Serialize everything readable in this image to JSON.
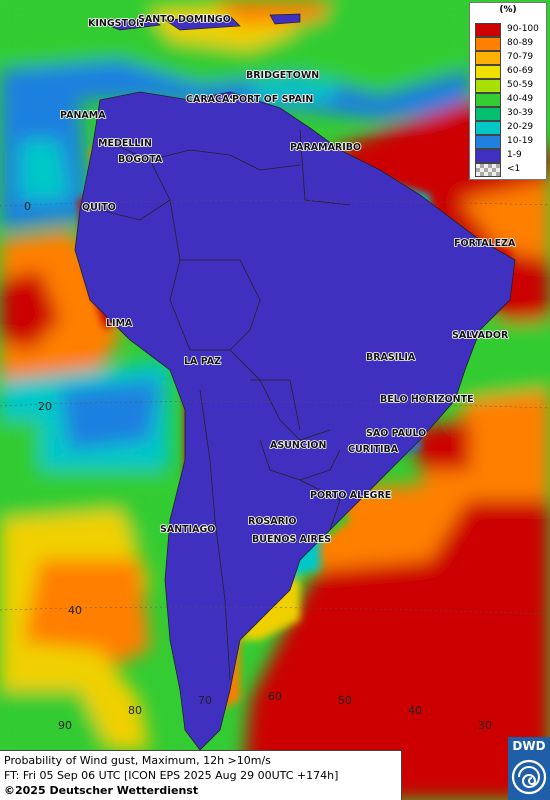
{
  "map": {
    "colors": {
      "ocean_high": "#cc0000",
      "ocean_orange": "#ff7f00",
      "ocean_yellow": "#f0d000",
      "ocean_green": "#33cc33",
      "ocean_cyan": "#00c8c8",
      "ocean_blue": "#1f80e0",
      "land_low": "#4030c0",
      "land_none": "#ece6d0",
      "water": "#3399ff"
    },
    "cities": [
      {
        "id": "kingston",
        "label": "KINGSTON"
      },
      {
        "id": "santo-domingo",
        "label": "SANTO DOMINGO"
      },
      {
        "id": "bridgetown",
        "label": "BRIDGETOWN"
      },
      {
        "id": "caracas",
        "label": "CARACAS"
      },
      {
        "id": "port-of-spain",
        "label": "PORT OF SPAIN"
      },
      {
        "id": "panama",
        "label": "PANAMA"
      },
      {
        "id": "medellin",
        "label": "MEDELLIN"
      },
      {
        "id": "bogota",
        "label": "BOGOTA"
      },
      {
        "id": "paramaribo",
        "label": "PARAMARIBO"
      },
      {
        "id": "quito",
        "label": "QUITO"
      },
      {
        "id": "fortaleza",
        "label": "FORTALEZA"
      },
      {
        "id": "lima",
        "label": "LIMA"
      },
      {
        "id": "salvador",
        "label": "SALVADOR"
      },
      {
        "id": "brasilia",
        "label": "BRASILIA"
      },
      {
        "id": "la-paz",
        "label": "LA PAZ"
      },
      {
        "id": "belo-horizonte",
        "label": "BELO HORIZONTE"
      },
      {
        "id": "sao-paulo",
        "label": "SAO PAULO"
      },
      {
        "id": "asuncion",
        "label": "ASUNCION"
      },
      {
        "id": "curitiba",
        "label": "CURITIBA"
      },
      {
        "id": "porto-alegre",
        "label": "PORTO ALEGRE"
      },
      {
        "id": "rosario",
        "label": "ROSARIO"
      },
      {
        "id": "santiago",
        "label": "SANTIAGO"
      },
      {
        "id": "buenos-aires",
        "label": "BUENOS AIRES"
      }
    ],
    "gridlabels": [
      {
        "id": "lat-0",
        "label": "0"
      },
      {
        "id": "lat-20",
        "label": "20"
      },
      {
        "id": "lat-40",
        "label": "40"
      },
      {
        "id": "lon-90",
        "label": "90"
      },
      {
        "id": "lon-80",
        "label": "80"
      },
      {
        "id": "lon-70",
        "label": "70"
      },
      {
        "id": "lon-60",
        "label": "60"
      },
      {
        "id": "lon-50",
        "label": "50"
      },
      {
        "id": "lon-40",
        "label": "40"
      },
      {
        "id": "lon-30",
        "label": "30"
      }
    ]
  },
  "legend": {
    "title": "(%)",
    "items": [
      {
        "label": "90-100",
        "color": "#cc0000"
      },
      {
        "label": "80-89",
        "color": "#ff7f00"
      },
      {
        "label": "70-79",
        "color": "#ffb000"
      },
      {
        "label": "60-69",
        "color": "#f0e000"
      },
      {
        "label": "50-59",
        "color": "#a8e000"
      },
      {
        "label": "40-49",
        "color": "#33cc33"
      },
      {
        "label": "30-39",
        "color": "#00c070"
      },
      {
        "label": "20-29",
        "color": "#00c8c8"
      },
      {
        "label": "10-19",
        "color": "#1f80e0"
      },
      {
        "label": "1-9",
        "color": "#4030c0"
      },
      {
        "label": "<1",
        "color": "#c8c8c8"
      }
    ]
  },
  "info": {
    "line1": "Probability of Wind gust, Maximum, 12h >10m/s",
    "line2": "FT: Fri 05 Sep 06 UTC [ICON EPS 2025 Aug 29 00UTC +174h]",
    "line3": "©2025 Deutscher Wetterdienst"
  },
  "logo": {
    "text": "DWD"
  }
}
